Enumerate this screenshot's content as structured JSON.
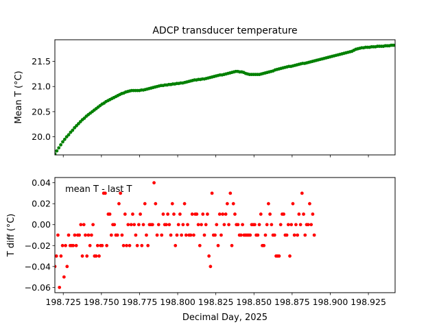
{
  "chart_data": [
    {
      "type": "scatter",
      "title": "ADCP transducer temperature",
      "ylabel": "Mean T (°C)",
      "xlabel": "",
      "xlim": [
        198.7195,
        198.9425
      ],
      "ylim": [
        19.64,
        21.93
      ],
      "yticks": [
        20.0,
        20.5,
        21.0,
        21.5
      ],
      "ytick_labels": [
        "20.0",
        "20.5",
        "21.0",
        "21.5"
      ],
      "xticks": [
        198.725,
        198.75,
        198.775,
        198.8,
        198.825,
        198.85,
        198.875,
        198.9,
        198.925
      ],
      "show_xtick_labels": false,
      "grid": false,
      "series": [
        {
          "color": "#008000",
          "marker": "circle",
          "x_start": 198.7195,
          "x_end": 198.9425,
          "y": [
            19.66,
            19.72,
            19.78,
            19.84,
            19.9,
            19.95,
            20.0,
            20.04,
            20.09,
            20.13,
            20.18,
            20.22,
            20.26,
            20.3,
            20.34,
            20.37,
            20.41,
            20.44,
            20.47,
            20.5,
            20.53,
            20.56,
            20.59,
            20.62,
            20.65,
            20.67,
            20.7,
            20.72,
            20.74,
            20.76,
            20.78,
            20.8,
            20.82,
            20.84,
            20.86,
            20.87,
            20.89,
            20.9,
            20.91,
            20.92,
            20.92,
            20.92,
            20.92,
            20.92,
            20.93,
            20.93,
            20.94,
            20.95,
            20.96,
            20.97,
            20.98,
            20.99,
            21.0,
            21.01,
            21.02,
            21.02,
            21.03,
            21.03,
            21.04,
            21.04,
            21.05,
            21.05,
            21.06,
            21.06,
            21.07,
            21.07,
            21.08,
            21.09,
            21.1,
            21.11,
            21.12,
            21.13,
            21.13,
            21.14,
            21.14,
            21.15,
            21.15,
            21.16,
            21.17,
            21.18,
            21.19,
            21.2,
            21.21,
            21.22,
            21.23,
            21.23,
            21.24,
            21.25,
            21.26,
            21.27,
            21.28,
            21.29,
            21.3,
            21.3,
            21.29,
            21.29,
            21.28,
            21.26,
            21.25,
            21.24,
            21.24,
            21.24,
            21.24,
            21.24,
            21.24,
            21.25,
            21.26,
            21.27,
            21.28,
            21.29,
            21.3,
            21.31,
            21.33,
            21.34,
            21.35,
            21.36,
            21.37,
            21.38,
            21.39,
            21.4,
            21.4,
            21.41,
            21.42,
            21.43,
            21.44,
            21.45,
            21.46,
            21.46,
            21.47,
            21.48,
            21.49,
            21.5,
            21.51,
            21.52,
            21.53,
            21.54,
            21.55,
            21.56,
            21.57,
            21.58,
            21.59,
            21.6,
            21.61,
            21.62,
            21.63,
            21.64,
            21.65,
            21.66,
            21.67,
            21.68,
            21.69,
            21.7,
            21.72,
            21.74,
            21.75,
            21.76,
            21.77,
            21.77,
            21.78,
            21.78,
            21.78,
            21.79,
            21.79,
            21.79,
            21.8,
            21.8,
            21.8,
            21.8,
            21.81,
            21.81,
            21.81,
            21.82,
            21.82,
            21.82
          ]
        }
      ]
    },
    {
      "type": "scatter",
      "title": "",
      "annotation": "mean T - last T",
      "ylabel": "T diff (°C)",
      "xlabel": "Decimal Day, 2025",
      "xlim": [
        198.7195,
        198.9425
      ],
      "ylim": [
        -0.065,
        0.045
      ],
      "yticks": [
        -0.06,
        -0.04,
        -0.02,
        0.0,
        0.02,
        0.04
      ],
      "ytick_labels": [
        "−0.06",
        "−0.04",
        "−0.02",
        "0.00",
        "0.02",
        "0.04"
      ],
      "xticks": [
        198.725,
        198.75,
        198.775,
        198.8,
        198.825,
        198.85,
        198.875,
        198.9,
        198.925
      ],
      "xtick_labels": [
        "198.725",
        "198.750",
        "198.775",
        "198.800",
        "198.825",
        "198.850",
        "198.875",
        "198.900",
        "198.925"
      ],
      "grid": false,
      "series": [
        {
          "color": "#ff0000",
          "marker": "circle",
          "points": [
            [
              198.7195,
              -0.04
            ],
            [
              198.7205,
              -0.03
            ],
            [
              198.7215,
              -0.01
            ],
            [
              198.7225,
              -0.06
            ],
            [
              198.7235,
              -0.03
            ],
            [
              198.7245,
              -0.02
            ],
            [
              198.7255,
              -0.05
            ],
            [
              198.7265,
              -0.02
            ],
            [
              198.7275,
              -0.04
            ],
            [
              198.7285,
              -0.01
            ],
            [
              198.7295,
              -0.02
            ],
            [
              198.7305,
              -0.02
            ],
            [
              198.7315,
              -0.02
            ],
            [
              198.7325,
              -0.01
            ],
            [
              198.7335,
              -0.02
            ],
            [
              198.7345,
              -0.01
            ],
            [
              198.7355,
              -0.01
            ],
            [
              198.7365,
              0.0
            ],
            [
              198.7375,
              -0.03
            ],
            [
              198.7385,
              0.0
            ],
            [
              198.7395,
              -0.01
            ],
            [
              198.7405,
              -0.03
            ],
            [
              198.7415,
              -0.01
            ],
            [
              198.7425,
              -0.02
            ],
            [
              198.7435,
              -0.01
            ],
            [
              198.7445,
              0.0
            ],
            [
              198.7455,
              -0.03
            ],
            [
              198.7465,
              -0.03
            ],
            [
              198.7475,
              -0.02
            ],
            [
              198.7485,
              -0.03
            ],
            [
              198.7495,
              -0.02
            ],
            [
              198.7505,
              -0.02
            ],
            [
              198.7515,
              0.03
            ],
            [
              198.7525,
              0.03
            ],
            [
              198.7535,
              -0.02
            ],
            [
              198.7545,
              0.01
            ],
            [
              198.7555,
              0.01
            ],
            [
              198.7565,
              -0.01
            ],
            [
              198.7575,
              0.0
            ],
            [
              198.7585,
              0.0
            ],
            [
              198.7595,
              -0.01
            ],
            [
              198.7605,
              -0.01
            ],
            [
              198.7615,
              0.02
            ],
            [
              198.7625,
              0.03
            ],
            [
              198.7635,
              -0.01
            ],
            [
              198.7645,
              -0.02
            ],
            [
              198.7655,
              0.01
            ],
            [
              198.7665,
              -0.02
            ],
            [
              198.7675,
              0.0
            ],
            [
              198.7685,
              -0.02
            ],
            [
              198.7695,
              0.0
            ],
            [
              198.7705,
              0.01
            ],
            [
              198.7715,
              0.0
            ],
            [
              198.7725,
              -0.01
            ],
            [
              198.7735,
              -0.02
            ],
            [
              198.7745,
              0.0
            ],
            [
              198.7755,
              0.01
            ],
            [
              198.7765,
              -0.02
            ],
            [
              198.7775,
              0.0
            ],
            [
              198.7785,
              0.02
            ],
            [
              198.7795,
              -0.01
            ],
            [
              198.7805,
              -0.02
            ],
            [
              198.7815,
              0.0
            ],
            [
              198.7825,
              0.0
            ],
            [
              198.7835,
              0.0
            ],
            [
              198.7845,
              0.04
            ],
            [
              198.7855,
              0.02
            ],
            [
              198.7865,
              -0.01
            ],
            [
              198.7875,
              0.0
            ],
            [
              198.7895,
              -0.01
            ],
            [
              198.7905,
              0.01
            ],
            [
              198.7915,
              0.0
            ],
            [
              198.7925,
              0.0
            ],
            [
              198.7935,
              0.01
            ],
            [
              198.7945,
              0.0
            ],
            [
              198.7955,
              -0.01
            ],
            [
              198.7965,
              0.02
            ],
            [
              198.7975,
              0.01
            ],
            [
              198.7985,
              -0.02
            ],
            [
              198.7995,
              -0.01
            ],
            [
              198.8005,
              0.0
            ],
            [
              198.8015,
              0.01
            ],
            [
              198.8025,
              -0.01
            ],
            [
              198.8035,
              0.0
            ],
            [
              198.8045,
              0.02
            ],
            [
              198.8055,
              -0.01
            ],
            [
              198.8065,
              0.0
            ],
            [
              198.8075,
              -0.01
            ],
            [
              198.8085,
              -0.01
            ],
            [
              198.8095,
              0.01
            ],
            [
              198.8105,
              -0.01
            ],
            [
              198.8115,
              0.01
            ],
            [
              198.8125,
              0.01
            ],
            [
              198.8135,
              0.0
            ],
            [
              198.8145,
              -0.02
            ],
            [
              198.8155,
              0.0
            ],
            [
              198.8165,
              0.01
            ],
            [
              198.8175,
              -0.01
            ],
            [
              198.8185,
              0.0
            ],
            [
              198.8195,
              0.01
            ],
            [
              198.8205,
              -0.03
            ],
            [
              198.8215,
              -0.04
            ],
            [
              198.8225,
              0.03
            ],
            [
              198.8235,
              -0.01
            ],
            [
              198.8245,
              -0.01
            ],
            [
              198.8255,
              0.0
            ],
            [
              198.8265,
              -0.02
            ],
            [
              198.8275,
              0.01
            ],
            [
              198.8285,
              -0.01
            ],
            [
              198.8295,
              0.01
            ],
            [
              198.8305,
              0.0
            ],
            [
              198.8315,
              0.01
            ],
            [
              198.8325,
              0.02
            ],
            [
              198.8335,
              0.0
            ],
            [
              198.8345,
              0.03
            ],
            [
              198.8355,
              -0.02
            ],
            [
              198.8365,
              0.02
            ],
            [
              198.8375,
              0.01
            ],
            [
              198.8385,
              0.0
            ],
            [
              198.8395,
              0.0
            ],
            [
              198.8405,
              -0.01
            ],
            [
              198.8415,
              -0.01
            ],
            [
              198.8425,
              0.0
            ],
            [
              198.8435,
              -0.01
            ],
            [
              198.8445,
              -0.01
            ],
            [
              198.8455,
              -0.01
            ],
            [
              198.8465,
              -0.01
            ],
            [
              198.8475,
              -0.01
            ],
            [
              198.8485,
              0.0
            ],
            [
              198.8495,
              0.0
            ],
            [
              198.8505,
              0.0
            ],
            [
              198.8515,
              -0.01
            ],
            [
              198.8525,
              -0.01
            ],
            [
              198.8535,
              0.0
            ],
            [
              198.8545,
              0.01
            ],
            [
              198.8555,
              -0.02
            ],
            [
              198.8565,
              -0.02
            ],
            [
              198.8575,
              -0.01
            ],
            [
              198.8585,
              0.0
            ],
            [
              198.8595,
              0.02
            ],
            [
              198.8605,
              0.01
            ],
            [
              198.8615,
              0.0
            ],
            [
              198.8625,
              -0.01
            ],
            [
              198.8635,
              -0.01
            ],
            [
              198.8645,
              -0.03
            ],
            [
              198.8655,
              -0.03
            ],
            [
              198.8665,
              -0.03
            ],
            [
              198.8675,
              0.0
            ],
            [
              198.8685,
              0.01
            ],
            [
              198.8695,
              0.01
            ],
            [
              198.8705,
              -0.01
            ],
            [
              198.8715,
              -0.01
            ],
            [
              198.8725,
              0.0
            ],
            [
              198.8735,
              -0.03
            ],
            [
              198.8745,
              0.0
            ],
            [
              198.8755,
              0.02
            ],
            [
              198.8765,
              -0.01
            ],
            [
              198.8775,
              0.0
            ],
            [
              198.8785,
              -0.01
            ],
            [
              198.8795,
              0.01
            ],
            [
              198.8805,
              0.0
            ],
            [
              198.8815,
              0.03
            ],
            [
              198.8825,
              0.01
            ],
            [
              198.8835,
              -0.01
            ],
            [
              198.8845,
              0.0
            ],
            [
              198.8855,
              0.0
            ],
            [
              198.8865,
              0.02
            ],
            [
              198.8875,
              0.0
            ],
            [
              198.8885,
              0.01
            ],
            [
              198.8895,
              -0.01
            ]
          ]
        }
      ]
    }
  ]
}
